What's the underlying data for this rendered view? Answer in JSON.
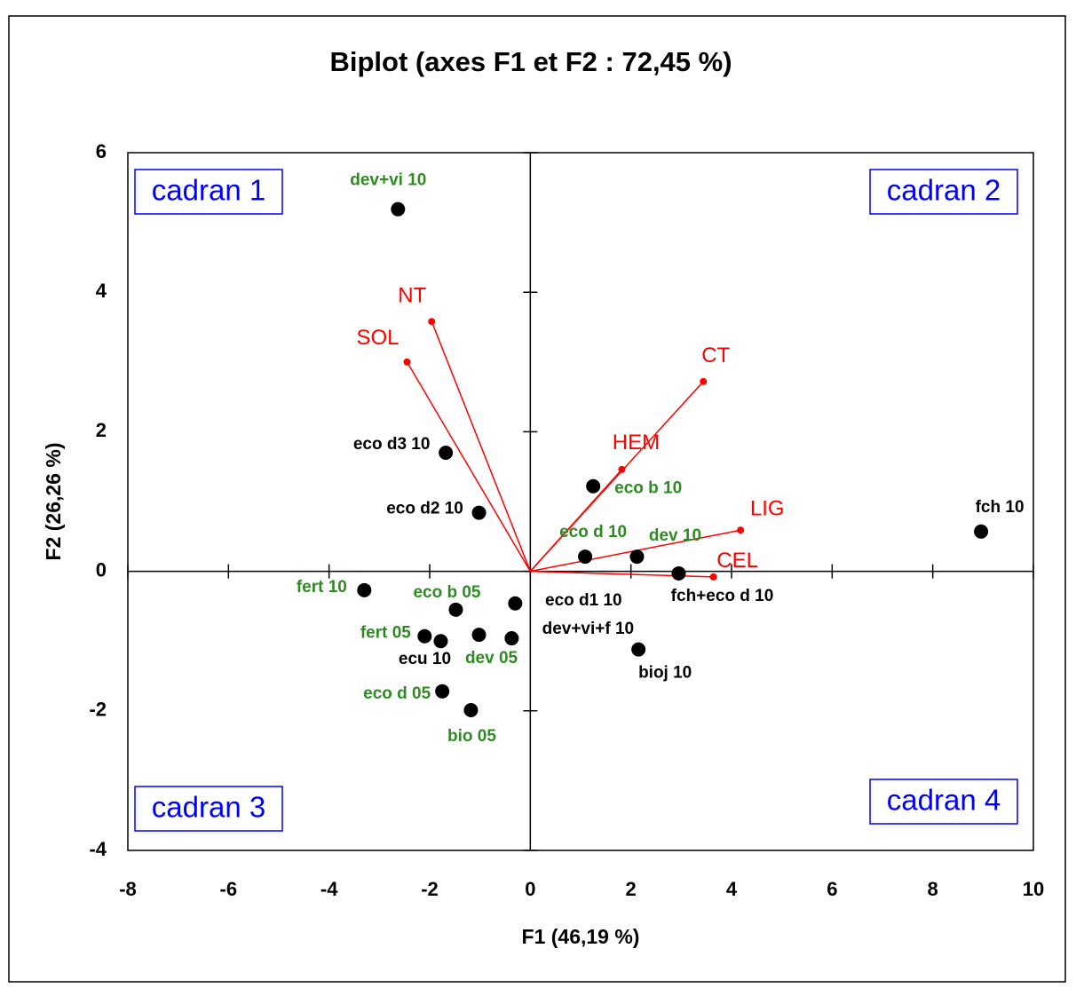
{
  "chart_data": {
    "type": "scatter",
    "title": "Biplot (axes F1 et F2 : 72,45 %)",
    "xlabel": "F1 (46,19 %)",
    "ylabel": "F2 (26,26 %)",
    "xlim": [
      -8,
      10
    ],
    "ylim": [
      -4,
      6
    ],
    "xticks": [
      -8,
      -6,
      -4,
      -2,
      0,
      2,
      4,
      6,
      8,
      10
    ],
    "yticks": [
      -4,
      -2,
      0,
      2,
      4,
      6
    ],
    "observations": {
      "labels": [
        "dev+vi 10",
        "eco d3 10",
        "eco d2 10",
        "eco b 10",
        "eco d 10",
        "dev 10",
        "fch+eco d 10",
        "fch 10",
        "fert 10",
        "eco b 05",
        "eco d1 10",
        "fert 05",
        "ecu 10",
        "dev 05",
        "dev+vi+f 10",
        "bioj 10",
        "eco d 05",
        "bio 05"
      ],
      "x": [
        -2.63,
        -1.68,
        -1.02,
        1.25,
        1.09,
        2.12,
        2.95,
        8.96,
        -3.3,
        -1.48,
        -0.3,
        -2.1,
        -1.78,
        -1.02,
        -0.37,
        2.15,
        -1.75,
        -1.18
      ],
      "y": [
        5.19,
        1.7,
        0.84,
        1.22,
        0.21,
        0.21,
        -0.03,
        0.57,
        -0.27,
        -0.55,
        -0.46,
        -0.93,
        -1.0,
        -0.91,
        -0.96,
        -1.12,
        -1.72,
        -1.99
      ],
      "color": "#000000",
      "label_colors": [
        "#2e8b22",
        "#000000",
        "#000000",
        "#2e8b22",
        "#2e8b22",
        "#2e8b22",
        "#000000",
        "#000000",
        "#2e8b22",
        "#2e8b22",
        "#000000",
        "#2e8b22",
        "#000000",
        "#2e8b22",
        "#000000",
        "#000000",
        "#2e8b22",
        "#2e8b22"
      ]
    },
    "variables": {
      "labels": [
        "NT",
        "SOL",
        "CT",
        "HEM",
        "LIG",
        "CEL"
      ],
      "x": [
        -1.96,
        -2.45,
        3.44,
        1.82,
        4.18,
        3.64
      ],
      "y": [
        3.58,
        3.0,
        2.72,
        1.46,
        0.59,
        -0.08
      ],
      "color": "#ff0000"
    },
    "annotations": [
      {
        "text": "cadran 1",
        "corner": "top-left"
      },
      {
        "text": "cadran 2",
        "corner": "top-right"
      },
      {
        "text": "cadran 3",
        "corner": "bottom-left"
      },
      {
        "text": "cadran 4",
        "corner": "bottom-right"
      }
    ]
  }
}
